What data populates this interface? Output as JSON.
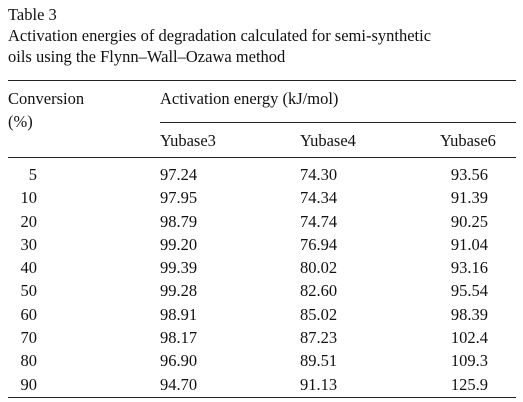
{
  "caption": {
    "label": "Table 3",
    "title_line1": "Activation energies of degradation calculated for semi-synthetic",
    "title_line2": "oils using the Flynn–Wall–Ozawa method"
  },
  "header": {
    "conversion": "Conversion",
    "conversion_unit": "(%)",
    "activation_energy": "Activation energy (kJ/mol)",
    "columns": [
      "Yubase3",
      "Yubase4",
      "Yubase6"
    ]
  },
  "rows": [
    {
      "conversion": "5",
      "yubase3": "97.24",
      "yubase4": "74.30",
      "yubase6": "93.56"
    },
    {
      "conversion": "10",
      "yubase3": "97.95",
      "yubase4": "74.34",
      "yubase6": "91.39"
    },
    {
      "conversion": "20",
      "yubase3": "98.79",
      "yubase4": "74.74",
      "yubase6": "90.25"
    },
    {
      "conversion": "30",
      "yubase3": "99.20",
      "yubase4": "76.94",
      "yubase6": "91.04"
    },
    {
      "conversion": "40",
      "yubase3": "99.39",
      "yubase4": "80.02",
      "yubase6": "93.16"
    },
    {
      "conversion": "50",
      "yubase3": "99.28",
      "yubase4": "82.60",
      "yubase6": "95.54"
    },
    {
      "conversion": "60",
      "yubase3": "98.91",
      "yubase4": "85.02",
      "yubase6": "98.39"
    },
    {
      "conversion": "70",
      "yubase3": "98.17",
      "yubase4": "87.23",
      "yubase6": "102.4"
    },
    {
      "conversion": "80",
      "yubase3": "96.90",
      "yubase4": "89.51",
      "yubase6": "109.3"
    },
    {
      "conversion": "90",
      "yubase3": "94.70",
      "yubase4": "91.13",
      "yubase6": "125.9"
    }
  ]
}
